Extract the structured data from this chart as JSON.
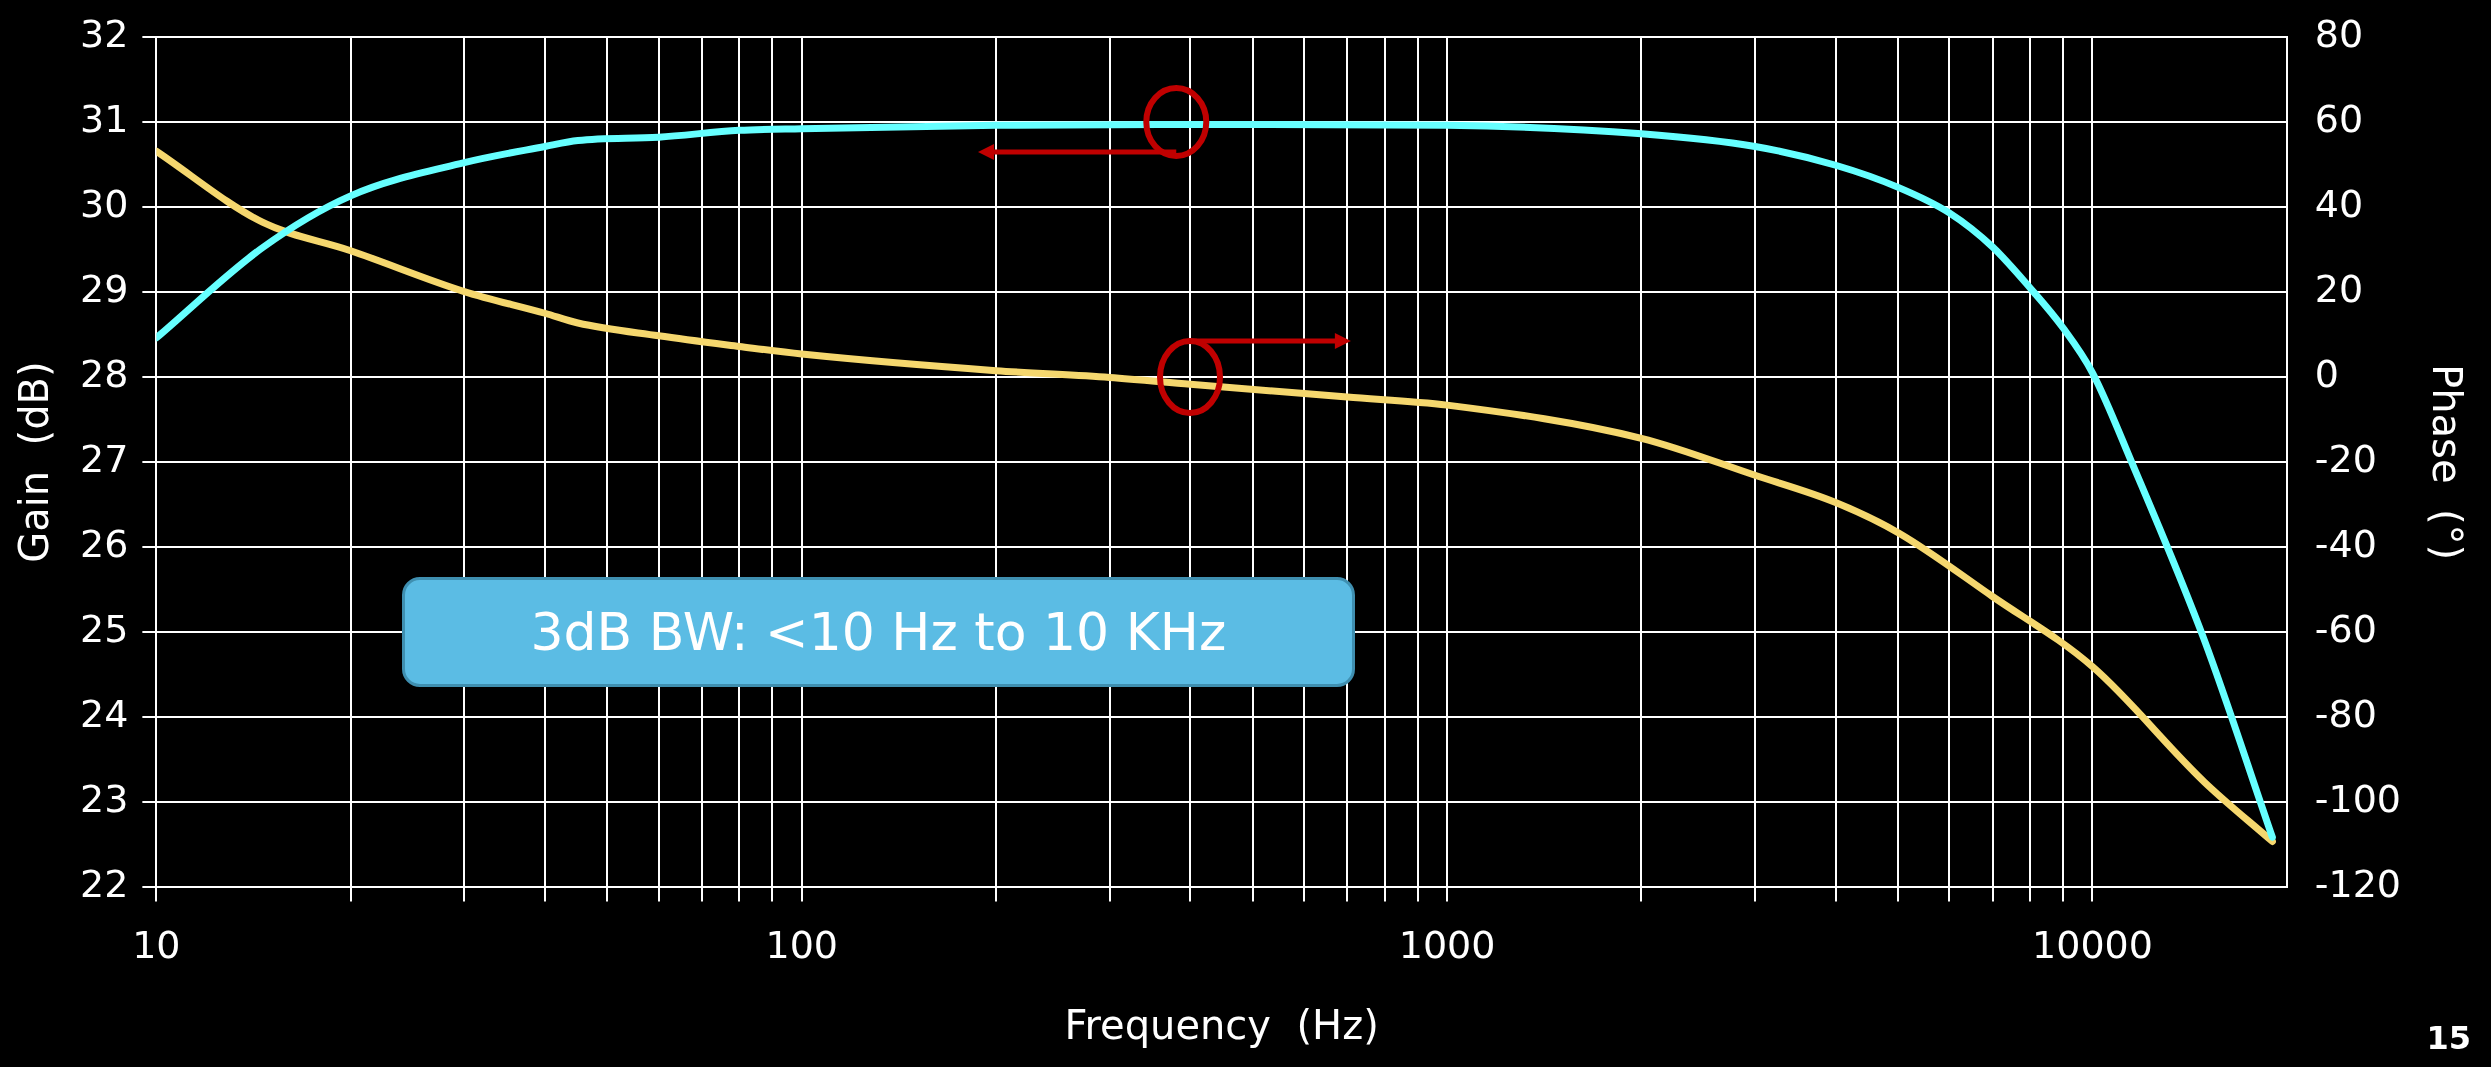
{
  "chart_data": {
    "type": "line",
    "xlabel": "Frequency  (Hz)",
    "ylabel": "Gain  (dB)",
    "y2label": "Phase  (°)",
    "log": "x",
    "grid": true,
    "legend": false,
    "marker": "none",
    "line_style": "solid",
    "xlim": [
      10,
      20000
    ],
    "xticks": [
      10,
      {
        "value": 20,
        "label": null
      },
      {
        "value": 30,
        "label": null
      },
      {
        "value": 40,
        "label": null
      },
      {
        "value": 50,
        "label": null
      },
      {
        "value": 60,
        "label": null
      },
      {
        "value": 70,
        "label": null
      },
      {
        "value": 80,
        "label": null
      },
      {
        "value": 90,
        "label": null
      },
      100,
      {
        "value": 200,
        "label": null
      },
      {
        "value": 300,
        "label": null
      },
      {
        "value": 400,
        "label": null
      },
      {
        "value": 500,
        "label": null
      },
      {
        "value": 600,
        "label": null
      },
      {
        "value": 700,
        "label": null
      },
      {
        "value": 800,
        "label": null
      },
      {
        "value": 900,
        "label": null
      },
      1000,
      {
        "value": 2000,
        "label": null
      },
      {
        "value": 3000,
        "label": null
      },
      {
        "value": 4000,
        "label": null
      },
      {
        "value": 5000,
        "label": null
      },
      {
        "value": 6000,
        "label": null
      },
      {
        "value": 7000,
        "label": null
      },
      {
        "value": 8000,
        "label": null
      },
      {
        "value": 9000,
        "label": null
      },
      10000
    ],
    "ylim": [
      22,
      32
    ],
    "yticks": [
      22,
      23,
      24,
      25,
      26,
      27,
      28,
      29,
      30,
      31,
      32
    ],
    "y2lim": [
      -120,
      80
    ],
    "y2ticks": [
      -120,
      -100,
      -80,
      -60,
      -40,
      -20,
      0,
      20,
      40,
      60,
      80
    ],
    "series": [
      {
        "color": "#66ffff",
        "x": [
          10,
          14.6,
          20,
          30,
          40,
          45,
          60,
          80,
          100,
          200,
          500,
          1000,
          2000,
          3000,
          4000,
          5000,
          6000,
          7000,
          8000,
          9000,
          10000,
          11500,
          14900,
          19000
        ],
        "values": [
          28.46,
          29.52,
          30.13,
          30.52,
          30.71,
          30.78,
          30.82,
          30.9,
          30.92,
          30.96,
          30.97,
          30.96,
          30.86,
          30.71,
          30.49,
          30.23,
          29.93,
          29.53,
          29.05,
          28.58,
          28.05,
          27.0,
          24.91,
          22.59
        ]
      },
      {
        "color": "#f5d76e",
        "axis": "y2",
        "x": [
          10,
          14.6,
          20,
          30,
          40,
          45,
          60,
          80,
          100,
          200,
          300,
          400,
          700,
          1000,
          2000,
          3000,
          4000,
          5000,
          7000,
          10000,
          14900,
          19000
        ],
        "values": [
          53.1,
          36.4,
          29.7,
          20.1,
          15.0,
          12.7,
          9.7,
          7.2,
          5.4,
          1.5,
          -0.1,
          -1.7,
          -4.7,
          -6.6,
          -14.4,
          -23.1,
          -29.5,
          -36.6,
          -51.6,
          -68.1,
          -95.2,
          -109.2
        ]
      }
    ],
    "annotations": [
      "3dB BW: <10 Hz to 10 KHz",
      "15"
    ]
  }
}
